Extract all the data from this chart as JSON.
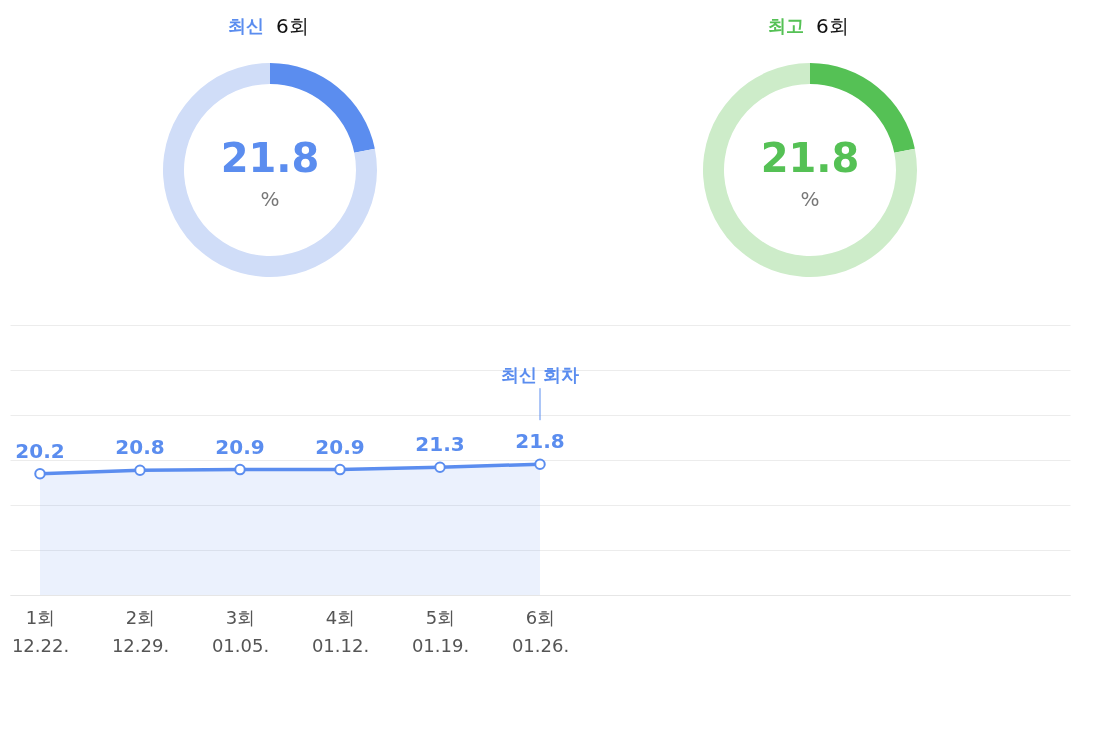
{
  "chart_data": [
    {
      "type": "donut",
      "title": "최신",
      "subtitle": "6회",
      "categories": [
        null,
        null
      ],
      "values": [
        21.8,
        78.2
      ],
      "colors": [
        "#5b8def",
        "#d0ddf8"
      ],
      "value_labels": [
        "21.8",
        null
      ],
      "annotations": [
        "%"
      ],
      "legend": false
    },
    {
      "type": "donut",
      "title": "최고",
      "subtitle": "6회",
      "categories": [
        null,
        null
      ],
      "values": [
        21.8,
        78.2
      ],
      "colors": [
        "#55c155",
        "#cdecc9"
      ],
      "value_labels": [
        "21.8",
        null
      ],
      "annotations": [
        "%"
      ],
      "legend": false
    },
    {
      "type": "area",
      "categories": [
        "1회\n12.22.",
        "2회\n12.29.",
        "3회\n01.05.",
        "4회\n01.12.",
        "5회\n01.19.",
        "6회\n01.26.",
        null,
        null,
        null,
        null,
        null
      ],
      "series": [
        {
          "color": "#5b8def",
          "values": [
            20.2,
            20.8,
            20.9,
            20.9,
            21.3,
            21.8,
            null,
            null,
            null,
            null,
            null
          ]
        }
      ],
      "ylim": [
        0,
        45
      ],
      "yticks": [
        {
          "value": 0,
          "label": null
        },
        {
          "value": 7.5,
          "label": null
        },
        {
          "value": 15,
          "label": null
        },
        {
          "value": 22.5,
          "label": null
        },
        {
          "value": 30,
          "label": null
        },
        {
          "value": 37.5,
          "label": null
        },
        {
          "value": 45,
          "label": null
        }
      ],
      "grid": "y",
      "marker": "circle",
      "data_labels": true,
      "tick_labels": "x",
      "legend": false,
      "annotations": [
        "최신 회차"
      ]
    }
  ]
}
